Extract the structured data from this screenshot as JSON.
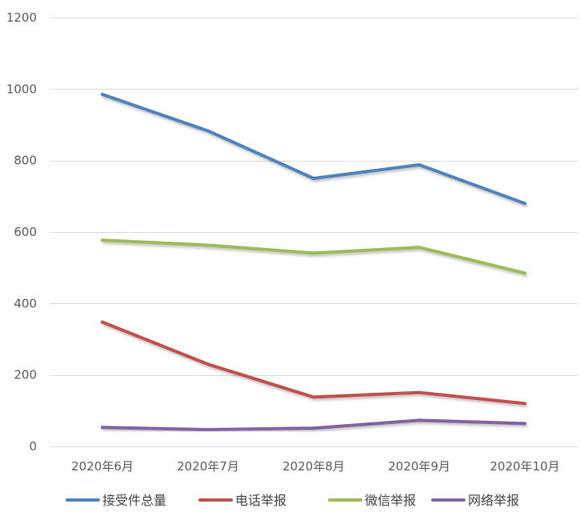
{
  "chart_data": {
    "type": "line",
    "categories": [
      "2020年6月",
      "2020年7月",
      "2020年8月",
      "2020年9月",
      "2020年10月"
    ],
    "ylim": [
      0,
      1200
    ],
    "yticks": [
      0,
      200,
      400,
      600,
      800,
      1000,
      1200
    ],
    "grid": true,
    "legend_position": "bottom",
    "series": [
      {
        "name": "接受件总量",
        "color": "#4F81BD",
        "values": [
          985,
          883,
          750,
          788,
          680
        ]
      },
      {
        "name": "电话举报",
        "color": "#C0504D",
        "values": [
          348,
          230,
          138,
          151,
          120
        ]
      },
      {
        "name": "微信举报",
        "color": "#9BBB59",
        "values": [
          577,
          563,
          541,
          557,
          485
        ]
      },
      {
        "name": "网络举报",
        "color": "#8064A2",
        "values": [
          53,
          47,
          51,
          73,
          64
        ]
      }
    ]
  }
}
